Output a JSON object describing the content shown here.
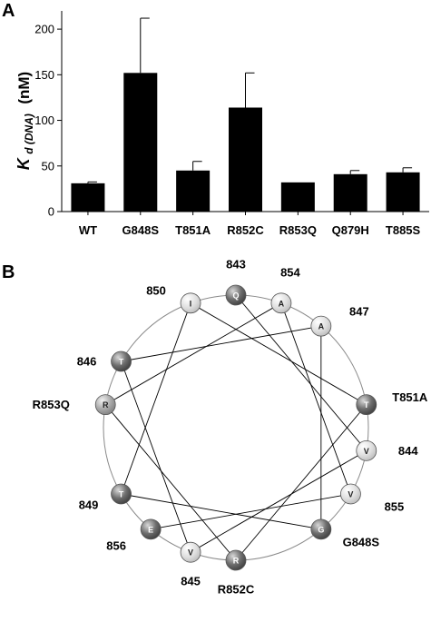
{
  "panels": {
    "a": {
      "letter": "A"
    },
    "b": {
      "letter": "B"
    }
  },
  "chart_data": {
    "type": "bar",
    "categories": [
      "WT",
      "G848S",
      "T851A",
      "R852C",
      "R853Q",
      "Q879H",
      "T885S"
    ],
    "values": [
      31,
      152,
      45,
      114,
      32,
      41,
      43
    ],
    "error_plus": [
      1.5,
      60,
      10,
      38,
      0,
      4,
      5
    ],
    "ylabel": {
      "symbol": "K",
      "subscript": "d (DNA)",
      "unit": "(nM)"
    },
    "ylim": [
      0,
      220
    ],
    "yticks": [
      0,
      50,
      100,
      150,
      200
    ],
    "bar_color": "#000000",
    "grid": false,
    "legend": "none"
  },
  "helical_wheel": {
    "residues": [
      {
        "letter": "Q",
        "number": "843",
        "shade": "dark"
      },
      {
        "letter": "V",
        "number": "844",
        "shade": "light"
      },
      {
        "letter": "V",
        "number": "845",
        "shade": "light"
      },
      {
        "letter": "T",
        "number": "846",
        "shade": "dark"
      },
      {
        "letter": "A",
        "number": "847",
        "shade": "light"
      },
      {
        "letter": "G",
        "number": "",
        "mutation": "G848S",
        "shade": "dark"
      },
      {
        "letter": "T",
        "number": "849",
        "shade": "dark"
      },
      {
        "letter": "I",
        "number": "850",
        "shade": "light"
      },
      {
        "letter": "T",
        "number": "",
        "mutation": "T851A",
        "shade": "dark"
      },
      {
        "letter": "R",
        "number": "",
        "mutation": "R852C",
        "shade": "dark"
      },
      {
        "letter": "R",
        "number": "",
        "mutation": "R853Q",
        "shade": "medium"
      },
      {
        "letter": "A",
        "number": "854",
        "shade": "light"
      },
      {
        "letter": "V",
        "number": "855",
        "shade": "light"
      },
      {
        "letter": "E",
        "number": "856",
        "shade": "dark"
      }
    ],
    "colors": {
      "dark": "#6a6a6a",
      "medium": "#a8a8a8",
      "light": "#dcdcdc"
    }
  }
}
